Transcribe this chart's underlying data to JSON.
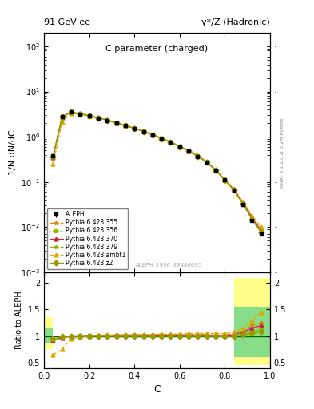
{
  "title_left": "91 GeV ee",
  "title_right": "γ*/Z (Hadronic)",
  "plot_title": "C parameter (charged)",
  "ylabel_main": "1/N dN/dC",
  "ylabel_ratio": "Ratio to ALEPH",
  "xlabel": "C",
  "watermark": "ALEPH_1996_S3486095",
  "right_axis_label": "Rivet 3.1.10, ≥ 3.2M events",
  "x_data": [
    0.04,
    0.08,
    0.12,
    0.16,
    0.2,
    0.24,
    0.28,
    0.32,
    0.36,
    0.4,
    0.44,
    0.48,
    0.52,
    0.56,
    0.6,
    0.64,
    0.68,
    0.72,
    0.76,
    0.8,
    0.84,
    0.88,
    0.92,
    0.96
  ],
  "aleph_y": [
    0.38,
    2.8,
    3.5,
    3.2,
    2.9,
    2.6,
    2.3,
    2.0,
    1.75,
    1.52,
    1.3,
    1.1,
    0.9,
    0.75,
    0.6,
    0.48,
    0.37,
    0.27,
    0.18,
    0.11,
    0.065,
    0.032,
    0.014,
    0.007
  ],
  "aleph_yerr_lo": [
    0.05,
    0.12,
    0.12,
    0.1,
    0.09,
    0.08,
    0.07,
    0.06,
    0.055,
    0.048,
    0.042,
    0.036,
    0.03,
    0.025,
    0.02,
    0.016,
    0.013,
    0.009,
    0.007,
    0.005,
    0.003,
    0.0015,
    0.0008,
    0.0004
  ],
  "aleph_yerr_hi": [
    0.05,
    0.12,
    0.12,
    0.1,
    0.09,
    0.08,
    0.07,
    0.06,
    0.055,
    0.048,
    0.042,
    0.036,
    0.03,
    0.025,
    0.02,
    0.016,
    0.013,
    0.009,
    0.007,
    0.005,
    0.003,
    0.0015,
    0.0008,
    0.0004
  ],
  "mc_names": [
    "Pythia 6.428 355",
    "Pythia 6.428 356",
    "Pythia 6.428 370",
    "Pythia 6.428 379",
    "Pythia 6.428 ambt1",
    "Pythia 6.428 z2"
  ],
  "mc_colors": [
    "#dd8800",
    "#99bb00",
    "#cc2244",
    "#88bb00",
    "#ddaa00",
    "#999900"
  ],
  "mc_markers": [
    "*",
    "s",
    "^",
    "*",
    "^",
    "D"
  ],
  "mc_linestyles": [
    "--",
    ":",
    "-",
    "-.",
    "--",
    "-"
  ],
  "mc_ratio_data": [
    [
      0.92,
      0.97,
      1.0,
      1.01,
      1.015,
      1.015,
      1.02,
      1.02,
      1.02,
      1.02,
      1.02,
      1.025,
      1.025,
      1.025,
      1.03,
      1.03,
      1.03,
      1.03,
      1.02,
      1.02,
      1.05,
      1.1,
      1.2,
      1.25
    ],
    [
      0.93,
      0.98,
      1.0,
      1.005,
      1.005,
      1.005,
      1.01,
      1.01,
      1.01,
      1.01,
      1.01,
      1.01,
      1.01,
      1.01,
      1.01,
      1.01,
      1.01,
      1.01,
      1.01,
      1.01,
      1.02,
      1.05,
      1.1,
      1.15
    ],
    [
      0.92,
      0.97,
      1.0,
      1.01,
      1.01,
      1.01,
      1.015,
      1.02,
      1.02,
      1.02,
      1.02,
      1.02,
      1.02,
      1.02,
      1.02,
      1.02,
      1.02,
      1.02,
      1.01,
      1.01,
      1.03,
      1.08,
      1.15,
      1.2
    ],
    [
      0.93,
      0.97,
      1.0,
      1.005,
      1.005,
      1.005,
      1.01,
      1.01,
      1.01,
      1.01,
      1.01,
      1.01,
      1.01,
      1.01,
      1.01,
      1.01,
      1.01,
      1.01,
      1.01,
      1.0,
      1.01,
      1.04,
      1.08,
      1.12
    ],
    [
      0.65,
      0.75,
      0.95,
      0.98,
      1.0,
      1.01,
      1.02,
      1.02,
      1.03,
      1.03,
      1.03,
      1.03,
      1.04,
      1.04,
      1.04,
      1.05,
      1.05,
      1.05,
      1.05,
      1.05,
      1.08,
      1.15,
      1.3,
      1.45
    ],
    [
      0.95,
      0.99,
      1.0,
      1.0,
      1.0,
      1.0,
      1.0,
      1.0,
      1.0,
      1.0,
      1.0,
      1.0,
      1.0,
      1.0,
      1.0,
      1.0,
      1.0,
      1.0,
      1.0,
      0.99,
      1.0,
      1.02,
      1.05,
      1.08
    ]
  ],
  "band_yellow_xlo": [
    0.0,
    0.84
  ],
  "band_yellow_xhi": [
    0.04,
    1.0
  ],
  "band_yellow_ylo": [
    0.75,
    0.45
  ],
  "band_yellow_yhi": [
    1.35,
    2.1
  ],
  "band_green_xlo": [
    0.0,
    0.84
  ],
  "band_green_xhi": [
    0.04,
    1.0
  ],
  "band_green_ylo": [
    0.88,
    0.6
  ],
  "band_green_yhi": [
    1.15,
    1.55
  ],
  "ylim_main": [
    0.001,
    200
  ],
  "ylim_ratio": [
    0.4,
    2.2
  ],
  "xlim": [
    0.0,
    1.0
  ]
}
